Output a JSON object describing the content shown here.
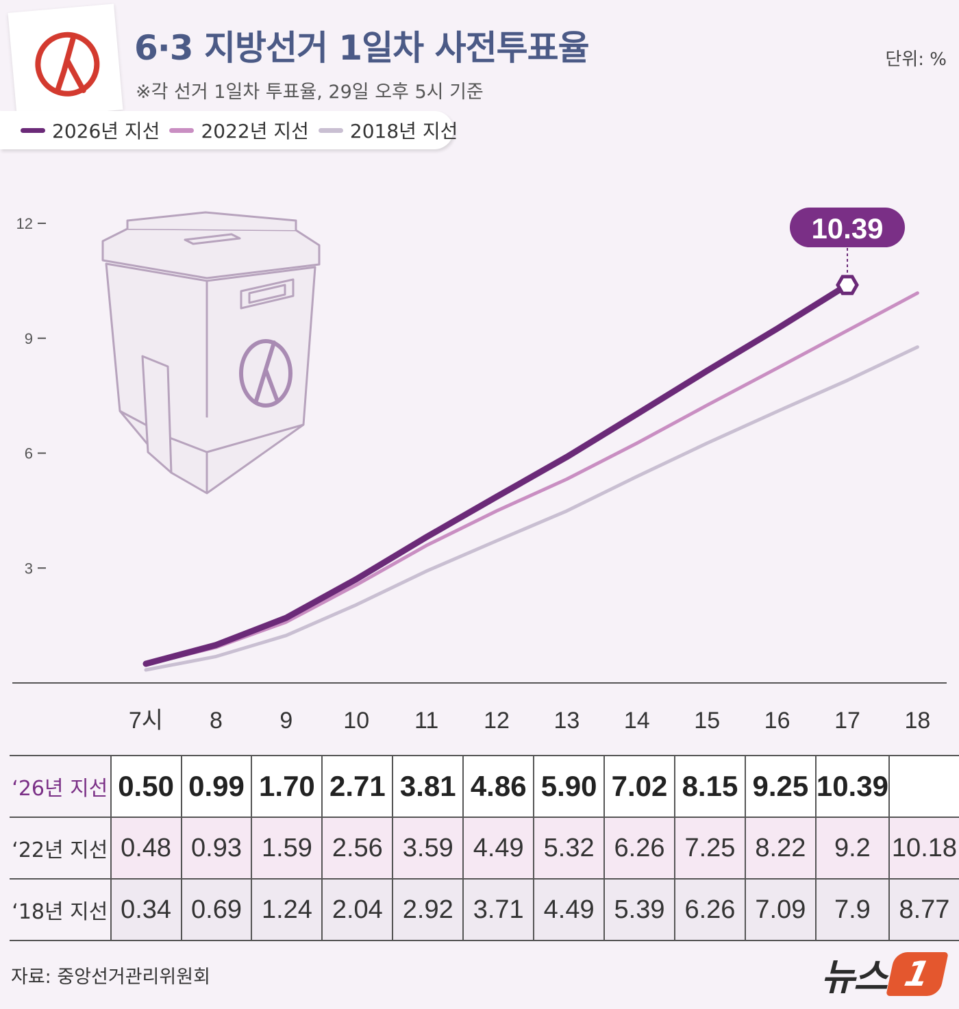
{
  "header": {
    "title": "6·3 지방선거 1일차 사전투표율",
    "subtitle": "※각 선거 1일차 투표율, 29일 오후 5시 기준",
    "unit": "단위: %"
  },
  "legend": [
    {
      "label": "2026년 지선",
      "color": "#6b2a78"
    },
    {
      "label": "2022년 지선",
      "color": "#c98ec2"
    },
    {
      "label": "2018년 지선",
      "color": "#c9bfd2"
    }
  ],
  "table": {
    "row_labels": [
      "‘26년 지선",
      "‘22년 지선",
      "‘18년 지선"
    ],
    "rows": [
      [
        "0.50",
        "0.99",
        "1.70",
        "2.71",
        "3.81",
        "4.86",
        "5.90",
        "7.02",
        "8.15",
        "9.25",
        "10.39",
        ""
      ],
      [
        "0.48",
        "0.93",
        "1.59",
        "2.56",
        "3.59",
        "4.49",
        "5.32",
        "6.26",
        "7.25",
        "8.22",
        "9.2",
        "10.18"
      ],
      [
        "0.34",
        "0.69",
        "1.24",
        "2.04",
        "2.92",
        "3.71",
        "4.49",
        "5.39",
        "6.26",
        "7.09",
        "7.9",
        "8.77"
      ]
    ]
  },
  "footer": {
    "source": "자료: 중앙선거관리위원회",
    "brand": "뉴스",
    "brand_badge": "1"
  },
  "colors": {
    "accent": "#7a2f86",
    "title": "#4b5a86",
    "background": "#f7f2f8"
  },
  "icons": [
    "ballot-stamp-icon",
    "ballot-box-icon"
  ],
  "chart_data": {
    "type": "line",
    "title": "6·3 지방선거 1일차 사전투표율",
    "subtitle": "※각 선거 1일차 투표율, 29일 오후 5시 기준",
    "x": [
      "7시",
      "8",
      "9",
      "10",
      "11",
      "12",
      "13",
      "14",
      "15",
      "16",
      "17",
      "18"
    ],
    "series": [
      {
        "name": "2026년 지선",
        "values": [
          0.5,
          0.99,
          1.7,
          2.71,
          3.81,
          4.86,
          5.9,
          7.02,
          8.15,
          9.25,
          10.39,
          null
        ]
      },
      {
        "name": "2022년 지선",
        "values": [
          0.48,
          0.93,
          1.59,
          2.56,
          3.59,
          4.49,
          5.32,
          6.26,
          7.25,
          8.22,
          9.2,
          10.18
        ]
      },
      {
        "name": "2018년 지선",
        "values": [
          0.34,
          0.69,
          1.24,
          2.04,
          2.92,
          3.71,
          4.49,
          5.39,
          6.26,
          7.09,
          7.9,
          8.77
        ]
      }
    ],
    "yticks": [
      "3",
      "6",
      "9",
      "12"
    ],
    "ylim": [
      0,
      12
    ],
    "callout": {
      "label": "10.39",
      "x": "17",
      "value": 10.39
    },
    "grid": false,
    "legend_position": "top-left"
  }
}
